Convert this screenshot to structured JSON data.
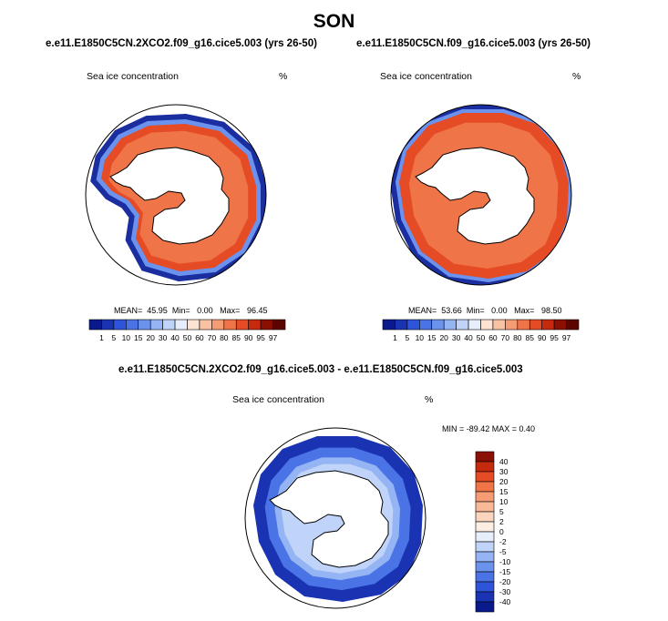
{
  "page": {
    "title": "SON"
  },
  "panels": [
    {
      "id": "left",
      "case": "e.e11.E1850C5CN.2XCO2.f09_g16.cice5.003 (yrs 26-50)",
      "field": "Sea ice concentration",
      "units": "%",
      "stats": {
        "mean_label": "MEAN=",
        "mean": "45.95",
        "min_label": "Min=",
        "min": "0.00",
        "max_label": "Max=",
        "max": "96.45"
      }
    },
    {
      "id": "right",
      "case": "e.e11.E1850C5CN.f09_g16.cice5.003 (yrs 26-50)",
      "field": "Sea ice concentration",
      "units": "%",
      "stats": {
        "mean_label": "MEAN=",
        "mean": "53.66",
        "min_label": "Min=",
        "min": "0.00",
        "max_label": "Max=",
        "max": "98.50"
      }
    }
  ],
  "diff_panel": {
    "case": "e.e11.E1850C5CN.2XCO2.f09_g16.cice5.003 - e.e11.E1850C5CN.f09_g16.cice5.003",
    "field": "Sea ice concentration",
    "units": "%",
    "minmax": "MIN = -89.42 MAX =  0.40"
  },
  "colorbar_abs": {
    "labels": [
      "1",
      "5",
      "10",
      "15",
      "20",
      "30",
      "40",
      "50",
      "60",
      "70",
      "80",
      "85",
      "90",
      "95",
      "97"
    ],
    "colors": [
      "#0a1a8c",
      "#1a33b3",
      "#2e55d9",
      "#4a73e6",
      "#6b93ee",
      "#94b4f4",
      "#c0d3f9",
      "#e6eefc",
      "#fde3d3",
      "#f9c2a3",
      "#f59c74",
      "#ef7448",
      "#e54b24",
      "#c62a0e",
      "#8c0f04",
      "#5c0500"
    ]
  },
  "colorbar_diff": {
    "labels": [
      "40",
      "30",
      "20",
      "15",
      "10",
      "5",
      "2",
      "0",
      "-2",
      "-5",
      "-10",
      "-15",
      "-20",
      "-30",
      "-40"
    ],
    "colors": [
      "#8c0f04",
      "#c62a0e",
      "#e54b24",
      "#ef7448",
      "#f59c74",
      "#f9b896",
      "#fbd4bd",
      "#fdeee4",
      "#e6eefc",
      "#c0d3f9",
      "#94b4f4",
      "#6b93ee",
      "#4a73e6",
      "#2e55d9",
      "#1a33b3",
      "#0a1a8c"
    ]
  }
}
